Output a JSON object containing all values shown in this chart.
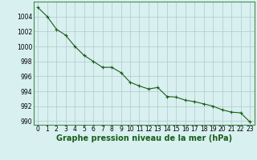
{
  "x": [
    0,
    1,
    2,
    3,
    4,
    5,
    6,
    7,
    8,
    9,
    10,
    11,
    12,
    13,
    14,
    15,
    16,
    17,
    18,
    19,
    20,
    21,
    22,
    23
  ],
  "y": [
    1005.2,
    1004.0,
    1002.3,
    1001.5,
    1000.0,
    998.8,
    998.0,
    997.2,
    997.2,
    996.5,
    995.2,
    994.7,
    994.3,
    994.5,
    993.3,
    993.2,
    992.8,
    992.6,
    992.3,
    992.0,
    991.5,
    991.2,
    991.1,
    989.9
  ],
  "line_color": "#1a5c1a",
  "marker": "+",
  "marker_size": 3,
  "marker_color": "#1a5c1a",
  "bg_color": "#d8f0f0",
  "grid_color": "#b0c8c8",
  "xlabel": "Graphe pression niveau de la mer (hPa)",
  "xlabel_fontsize": 7,
  "xlabel_color": "#1a5c1a",
  "ytick_labels": [
    990,
    992,
    994,
    996,
    998,
    1000,
    1002,
    1004
  ],
  "xtick_labels": [
    0,
    1,
    2,
    3,
    4,
    5,
    6,
    7,
    8,
    9,
    10,
    11,
    12,
    13,
    14,
    15,
    16,
    17,
    18,
    19,
    20,
    21,
    22,
    23
  ],
  "ylim": [
    989.5,
    1006.0
  ],
  "xlim": [
    -0.5,
    23.5
  ],
  "tick_fontsize": 5.5,
  "line_width": 0.8
}
